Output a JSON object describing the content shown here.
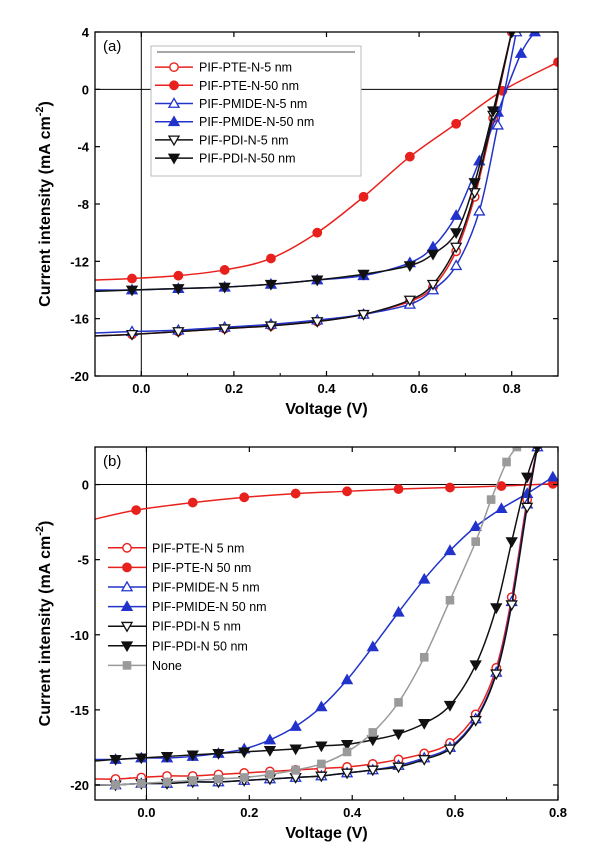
{
  "chart_data": [
    {
      "type": "line",
      "panel_label": "(a)",
      "xlabel": "Voltage (V)",
      "ylabel": "Current intensity (mA cm",
      "ylabel_sup": "-2",
      "ylabel_close": ")",
      "xlim": [
        -0.1,
        0.9
      ],
      "ylim": [
        -20,
        4
      ],
      "xticks": [
        0.0,
        0.2,
        0.4,
        0.6,
        0.8
      ],
      "xtick_labels": [
        "0.0",
        "0.2",
        "0.4",
        "0.6",
        "0.8"
      ],
      "yticks": [
        -20,
        -16,
        -12,
        -8,
        -4,
        0,
        4
      ],
      "ytick_labels": [
        "-20",
        "-16",
        "-12",
        "-8",
        "-4",
        "0",
        "4"
      ],
      "legend_position": "top-center",
      "series": [
        {
          "name": "PIF-PTE-N-5 nm",
          "color": "#e8211d",
          "marker": "circle-open",
          "x": [
            -0.1,
            -0.02,
            0.08,
            0.18,
            0.28,
            0.38,
            0.48,
            0.58,
            0.63,
            0.68,
            0.72,
            0.76,
            0.8
          ],
          "y": [
            -17.2,
            -17.1,
            -16.9,
            -16.7,
            -16.5,
            -16.2,
            -15.7,
            -14.8,
            -13.8,
            -11.3,
            -7.5,
            -2.0,
            4.0
          ]
        },
        {
          "name": "PIF-PTE-N-50 nm",
          "color": "#e8211d",
          "marker": "circle-filled",
          "x": [
            -0.1,
            -0.02,
            0.08,
            0.18,
            0.28,
            0.38,
            0.48,
            0.58,
            0.68,
            0.78,
            0.9
          ],
          "y": [
            -13.3,
            -13.2,
            -13.0,
            -12.6,
            -11.8,
            -10.0,
            -7.5,
            -4.7,
            -2.4,
            -0.1,
            1.9
          ]
        },
        {
          "name": "PIF-PMIDE-N-5 nm",
          "color": "#2233cc",
          "marker": "triangle-up-open",
          "x": [
            -0.1,
            -0.02,
            0.08,
            0.18,
            0.28,
            0.38,
            0.48,
            0.58,
            0.63,
            0.68,
            0.73,
            0.77,
            0.81
          ],
          "y": [
            -17.0,
            -16.9,
            -16.8,
            -16.6,
            -16.4,
            -16.1,
            -15.7,
            -15.0,
            -14.0,
            -12.3,
            -8.5,
            -2.5,
            4.0
          ]
        },
        {
          "name": "PIF-PMIDE-N-50 nm",
          "color": "#2233cc",
          "marker": "triangle-up-filled",
          "x": [
            -0.1,
            -0.02,
            0.08,
            0.18,
            0.28,
            0.38,
            0.48,
            0.58,
            0.63,
            0.68,
            0.73,
            0.77,
            0.82,
            0.85
          ],
          "y": [
            -14.0,
            -14.0,
            -13.9,
            -13.8,
            -13.6,
            -13.3,
            -13.0,
            -12.1,
            -11.0,
            -8.8,
            -5.0,
            -1.6,
            2.5,
            4.0
          ]
        },
        {
          "name": "PIF-PDI-N-5 nm",
          "color": "#111111",
          "marker": "triangle-down-open",
          "x": [
            -0.1,
            -0.02,
            0.08,
            0.18,
            0.28,
            0.38,
            0.48,
            0.58,
            0.63,
            0.68,
            0.72,
            0.76,
            0.8
          ],
          "y": [
            -17.2,
            -17.1,
            -16.9,
            -16.7,
            -16.5,
            -16.2,
            -15.7,
            -14.7,
            -13.6,
            -11.0,
            -7.2,
            -1.8,
            4.0
          ]
        },
        {
          "name": "PIF-PDI-N-50 nm",
          "color": "#111111",
          "marker": "triangle-down-filled",
          "x": [
            -0.1,
            -0.02,
            0.08,
            0.18,
            0.28,
            0.38,
            0.48,
            0.58,
            0.63,
            0.68,
            0.72,
            0.76,
            0.8
          ],
          "y": [
            -14.1,
            -14.0,
            -13.9,
            -13.8,
            -13.6,
            -13.3,
            -12.9,
            -12.3,
            -11.5,
            -10.0,
            -6.5,
            -1.5,
            4.0
          ]
        }
      ]
    },
    {
      "type": "line",
      "panel_label": "(b)",
      "xlabel": "Voltage (V)",
      "ylabel": "Current intensity (mA cm",
      "ylabel_sup": "-2",
      "ylabel_close": ")",
      "xlim": [
        -0.1,
        0.8
      ],
      "ylim": [
        -21,
        2.5
      ],
      "xticks": [
        0.0,
        0.2,
        0.4,
        0.6,
        0.8
      ],
      "xtick_labels": [
        "0.0",
        "0.2",
        "0.4",
        "0.6",
        "0.8"
      ],
      "yticks": [
        -20,
        -15,
        -10,
        -5,
        0
      ],
      "ytick_labels": [
        "-20",
        "-15",
        "-10",
        "-5",
        "0"
      ],
      "legend_position": "center-left",
      "series": [
        {
          "name": "PIF-PTE-N 5 nm",
          "color": "#e8211d",
          "marker": "circle-open",
          "x": [
            -0.1,
            -0.06,
            -0.01,
            0.04,
            0.09,
            0.14,
            0.19,
            0.24,
            0.29,
            0.34,
            0.39,
            0.44,
            0.49,
            0.54,
            0.59,
            0.64,
            0.68,
            0.71,
            0.74,
            0.76
          ],
          "y": [
            -19.6,
            -19.6,
            -19.5,
            -19.4,
            -19.4,
            -19.3,
            -19.2,
            -19.1,
            -19.0,
            -18.9,
            -18.8,
            -18.6,
            -18.3,
            -17.9,
            -17.2,
            -15.3,
            -12.2,
            -7.5,
            -1.0,
            2.5
          ]
        },
        {
          "name": "PIF-PTE-N 50 nm",
          "color": "#e8211d",
          "marker": "circle-filled",
          "x": [
            -0.1,
            -0.02,
            0.09,
            0.19,
            0.29,
            0.39,
            0.49,
            0.59,
            0.69,
            0.79
          ],
          "y": [
            -2.3,
            -1.7,
            -1.2,
            -0.85,
            -0.6,
            -0.45,
            -0.3,
            -0.2,
            -0.1,
            0.05
          ]
        },
        {
          "name": "PIF-PMIDE-N 5 nm",
          "color": "#2233cc",
          "marker": "triangle-up-open",
          "x": [
            -0.1,
            -0.06,
            -0.01,
            0.04,
            0.09,
            0.14,
            0.19,
            0.24,
            0.29,
            0.34,
            0.39,
            0.44,
            0.49,
            0.54,
            0.59,
            0.64,
            0.68,
            0.71,
            0.74,
            0.76
          ],
          "y": [
            -20.0,
            -20.0,
            -19.9,
            -19.9,
            -19.8,
            -19.8,
            -19.7,
            -19.6,
            -19.5,
            -19.4,
            -19.2,
            -19.0,
            -18.7,
            -18.2,
            -17.5,
            -15.6,
            -12.5,
            -7.8,
            -1.3,
            2.5
          ]
        },
        {
          "name": "PIF-PMIDE-N 50 nm",
          "color": "#2233cc",
          "marker": "triangle-up-filled",
          "x": [
            -0.1,
            -0.06,
            -0.01,
            0.04,
            0.09,
            0.14,
            0.19,
            0.24,
            0.29,
            0.34,
            0.39,
            0.44,
            0.49,
            0.54,
            0.59,
            0.64,
            0.69,
            0.74,
            0.79
          ],
          "y": [
            -18.3,
            -18.3,
            -18.2,
            -18.2,
            -18.1,
            -17.9,
            -17.6,
            -17.0,
            -16.1,
            -14.8,
            -13.0,
            -10.8,
            -8.5,
            -6.3,
            -4.4,
            -2.8,
            -1.6,
            -0.6,
            0.5
          ]
        },
        {
          "name": "PIF-PDI-N 5 nm",
          "color": "#111111",
          "marker": "triangle-down-open",
          "x": [
            -0.1,
            -0.06,
            -0.01,
            0.04,
            0.09,
            0.14,
            0.19,
            0.24,
            0.29,
            0.34,
            0.39,
            0.44,
            0.49,
            0.54,
            0.59,
            0.64,
            0.68,
            0.71,
            0.74,
            0.76
          ],
          "y": [
            -20.0,
            -20.0,
            -19.9,
            -19.9,
            -19.8,
            -19.8,
            -19.7,
            -19.6,
            -19.5,
            -19.4,
            -19.2,
            -19.0,
            -18.8,
            -18.3,
            -17.6,
            -15.7,
            -12.6,
            -8.0,
            -1.5,
            2.5
          ]
        },
        {
          "name": "PIF-PDI-N 50 nm",
          "color": "#111111",
          "marker": "triangle-down-filled",
          "x": [
            -0.1,
            -0.06,
            -0.01,
            0.04,
            0.09,
            0.14,
            0.19,
            0.24,
            0.29,
            0.34,
            0.39,
            0.44,
            0.49,
            0.54,
            0.59,
            0.64,
            0.68,
            0.71,
            0.74,
            0.76
          ],
          "y": [
            -18.4,
            -18.3,
            -18.2,
            -18.1,
            -18.0,
            -17.9,
            -17.8,
            -17.7,
            -17.6,
            -17.4,
            -17.3,
            -17.0,
            -16.6,
            -15.9,
            -14.7,
            -12.0,
            -8.2,
            -3.8,
            0.5,
            2.5
          ]
        },
        {
          "name": "None",
          "color": "#9a9a9a",
          "marker": "square-filled",
          "x": [
            -0.1,
            -0.06,
            -0.01,
            0.04,
            0.09,
            0.14,
            0.19,
            0.24,
            0.29,
            0.34,
            0.39,
            0.44,
            0.49,
            0.54,
            0.59,
            0.64,
            0.67,
            0.7,
            0.72
          ],
          "y": [
            -20.0,
            -20.0,
            -19.9,
            -19.8,
            -19.7,
            -19.6,
            -19.5,
            -19.3,
            -19.0,
            -18.6,
            -17.8,
            -16.5,
            -14.5,
            -11.5,
            -7.7,
            -3.8,
            -1.0,
            1.5,
            2.5
          ]
        }
      ]
    }
  ]
}
